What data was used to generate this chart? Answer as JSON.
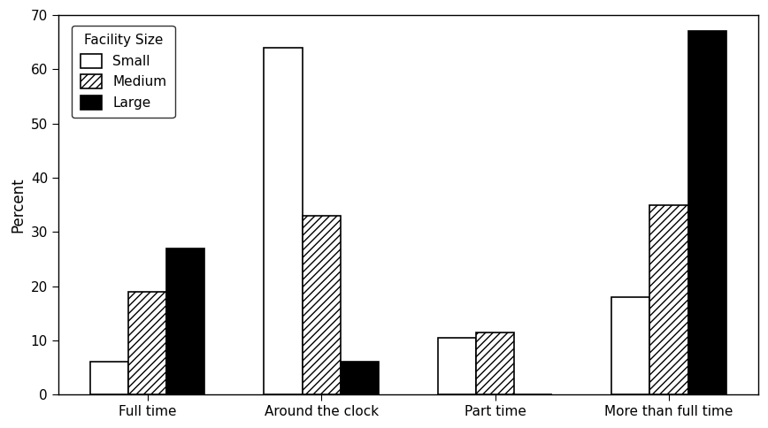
{
  "categories": [
    "Full time",
    "Around the clock",
    "Part time",
    "More than full time"
  ],
  "small": [
    6,
    64,
    10.5,
    18
  ],
  "medium": [
    19,
    33,
    11.5,
    35
  ],
  "large": [
    27,
    6,
    0,
    67
  ],
  "ylabel": "Percent",
  "ylim": [
    0,
    70
  ],
  "yticks": [
    0,
    10,
    20,
    30,
    40,
    50,
    60,
    70
  ],
  "legend_title": "Facility Size",
  "legend_labels": [
    "Small",
    "Medium",
    "Large"
  ],
  "bar_width": 0.22,
  "background_color": "#ffffff",
  "plot_bg_color": "#ffffff"
}
